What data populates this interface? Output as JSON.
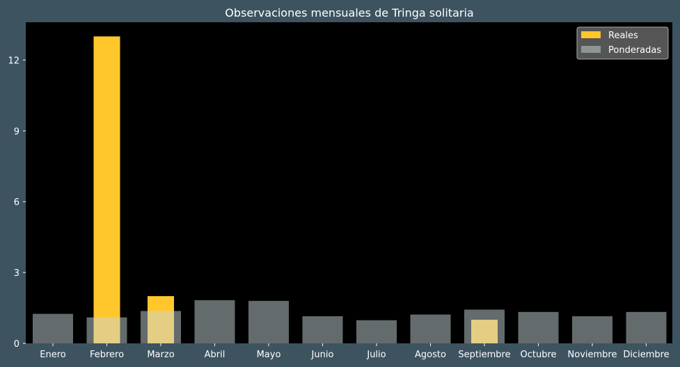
{
  "chart_data": {
    "type": "bar",
    "title": "Observaciones mensuales de Tringa solitaria",
    "xlabel": "",
    "ylabel": "",
    "categories": [
      "Enero",
      "Febrero",
      "Marzo",
      "Abril",
      "Mayo",
      "Junio",
      "Julio",
      "Agosto",
      "Septiembre",
      "Octubre",
      "Noviembre",
      "Diciembre"
    ],
    "series": [
      {
        "name": "Reales",
        "color": "#ffc72c",
        "values": [
          0,
          13,
          2,
          0,
          0,
          0,
          0,
          0,
          1,
          0,
          0,
          0
        ]
      },
      {
        "name": "Ponderadas",
        "color": "#c8d6d9",
        "opacity": 0.5,
        "values": [
          1.25,
          1.1,
          1.37,
          1.83,
          1.8,
          1.15,
          0.98,
          1.22,
          1.43,
          1.33,
          1.15,
          1.33
        ]
      }
    ],
    "ylim": [
      0,
      13.6
    ],
    "yticks": [
      "0",
      "3",
      "6",
      "9",
      "12"
    ],
    "grid": false,
    "legend_position": "top-right",
    "colors": {
      "page_background": "#3d5360",
      "plot_background": "#000000",
      "legend_background": "#555555"
    }
  }
}
